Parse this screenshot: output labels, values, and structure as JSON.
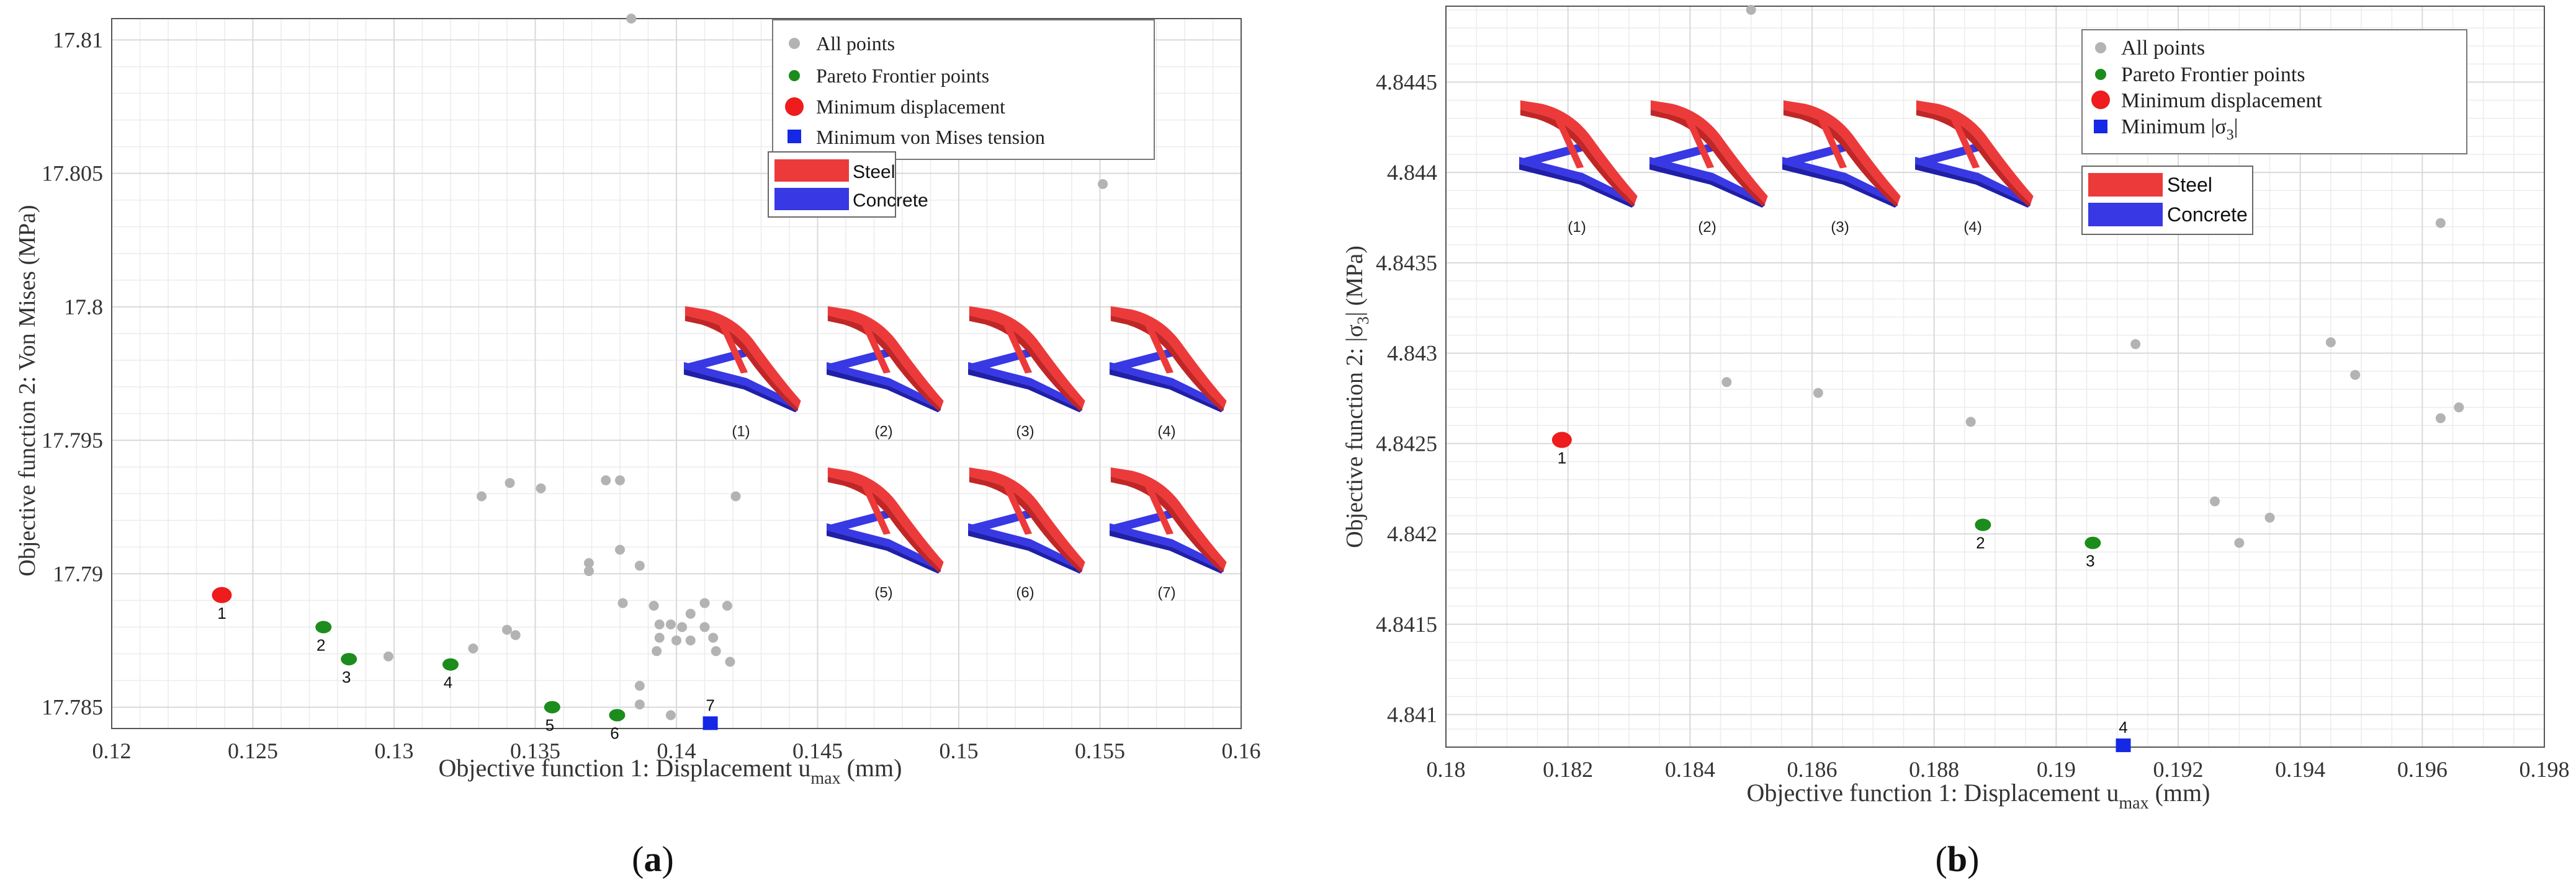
{
  "colors": {
    "all_points": "#b3b3b3",
    "pareto": "#1c8c1c",
    "min_displacement": "#ee1c1c",
    "min_stress": "#1428e6",
    "steel": "#ec3a3a",
    "concrete": "#3838e4",
    "grid": "#d9d9d9"
  },
  "material_legend": {
    "steel": "Steel",
    "concrete": "Concrete"
  },
  "chart_data": [
    {
      "type": "scatter",
      "panel_label": "a",
      "xlabel_prefix": "Objective function 1: Displacement u",
      "xlabel_sub": "max",
      "xlabel_suffix": " (mm)",
      "ylabel": "Objective function 2: Von Mises (MPa)",
      "xlim": [
        0.12,
        0.16
      ],
      "ylim": [
        17.7842,
        17.8108
      ],
      "xticks": [
        0.12,
        0.125,
        0.13,
        0.135,
        0.14,
        0.145,
        0.15,
        0.155,
        0.16
      ],
      "xtick_labels": [
        "0.12",
        "0.125",
        "0.13",
        "0.135",
        "0.14",
        "0.145",
        "0.15",
        "0.155",
        "0.16"
      ],
      "yticks": [
        17.785,
        17.79,
        17.795,
        17.8,
        17.805,
        17.81
      ],
      "ytick_labels": [
        "17.785",
        "17.79",
        "17.795",
        "17.8",
        "17.805",
        "17.81"
      ],
      "legend": {
        "all": "All points",
        "pareto": "Pareto Frontier points",
        "min_disp": "Minimum displacement",
        "min_stress": "Minimum von Mises tension"
      },
      "all_points": [
        [
          0.1384,
          17.8108
        ],
        [
          0.1551,
          17.8046
        ],
        [
          0.1331,
          17.7929
        ],
        [
          0.1341,
          17.7934
        ],
        [
          0.1352,
          17.7932
        ],
        [
          0.1375,
          17.7935
        ],
        [
          0.138,
          17.7935
        ],
        [
          0.1421,
          17.7929
        ],
        [
          0.1369,
          17.7904
        ],
        [
          0.1369,
          17.7901
        ],
        [
          0.138,
          17.7909
        ],
        [
          0.1387,
          17.7903
        ],
        [
          0.1381,
          17.7889
        ],
        [
          0.1392,
          17.7888
        ],
        [
          0.1405,
          17.7885
        ],
        [
          0.141,
          17.7889
        ],
        [
          0.1418,
          17.7888
        ],
        [
          0.134,
          17.7879
        ],
        [
          0.1343,
          17.7877
        ],
        [
          0.1394,
          17.7881
        ],
        [
          0.1398,
          17.7881
        ],
        [
          0.1402,
          17.788
        ],
        [
          0.141,
          17.788
        ],
        [
          0.1394,
          17.7876
        ],
        [
          0.14,
          17.7875
        ],
        [
          0.1405,
          17.7875
        ],
        [
          0.1413,
          17.7876
        ],
        [
          0.1298,
          17.7869
        ],
        [
          0.1328,
          17.7872
        ],
        [
          0.1393,
          17.7871
        ],
        [
          0.1414,
          17.7871
        ],
        [
          0.1419,
          17.7867
        ],
        [
          0.1387,
          17.7858
        ],
        [
          0.1387,
          17.7851
        ],
        [
          0.1398,
          17.7847
        ]
      ],
      "pareto_points": [
        {
          "x": 0.1275,
          "y": 17.788,
          "label": "2"
        },
        {
          "x": 0.1284,
          "y": 17.7868,
          "label": "3"
        },
        {
          "x": 0.132,
          "y": 17.7866,
          "label": "4"
        },
        {
          "x": 0.1356,
          "y": 17.785,
          "label": "5"
        },
        {
          "x": 0.1379,
          "y": 17.7847,
          "label": "6"
        }
      ],
      "min_displacement": {
        "x": 0.1239,
        "y": 17.7892,
        "label": "1"
      },
      "min_stress": {
        "x": 0.1412,
        "y": 17.7844,
        "label": "7"
      },
      "thumbnail_labels": [
        "(1)",
        "(2)",
        "(3)",
        "(4)",
        "(5)",
        "(6)",
        "(7)"
      ]
    },
    {
      "type": "scatter",
      "panel_label": "b",
      "xlabel_prefix": "Objective function 1: Displacement u",
      "xlabel_sub": "max",
      "xlabel_suffix": " (mm)",
      "ylabel_prefix": "Objective function 2: |σ",
      "ylabel_sub": "3",
      "ylabel_suffix": "| (MPa)",
      "xlim": [
        0.18,
        0.198
      ],
      "ylim": [
        4.84082,
        4.84492
      ],
      "xticks": [
        0.18,
        0.182,
        0.184,
        0.186,
        0.188,
        0.19,
        0.192,
        0.194,
        0.196,
        0.198
      ],
      "xtick_labels": [
        "0.18",
        "0.182",
        "0.184",
        "0.186",
        "0.188",
        "0.19",
        "0.192",
        "0.194",
        "0.196",
        "0.198"
      ],
      "yticks": [
        4.841,
        4.8415,
        4.842,
        4.8425,
        4.843,
        4.8435,
        4.844,
        4.8445
      ],
      "ytick_labels": [
        "4.841",
        "4.8415",
        "4.842",
        "4.8425",
        "4.843",
        "4.8435",
        "4.844",
        "4.8445"
      ],
      "legend": {
        "all": "All points",
        "pareto": "Pareto Frontier points",
        "min_disp": "Minimum displacement",
        "min_stress_prefix": "Minimum |σ",
        "min_stress_sub": "3",
        "min_stress_suffix": "|"
      },
      "all_points": [
        [
          0.185,
          4.8449
        ],
        [
          0.1963,
          4.84372
        ],
        [
          0.1846,
          4.84284
        ],
        [
          0.1861,
          4.84278
        ],
        [
          0.1886,
          4.84262
        ],
        [
          0.1913,
          4.84305
        ],
        [
          0.1945,
          4.84306
        ],
        [
          0.1949,
          4.84288
        ],
        [
          0.1963,
          4.84264
        ],
        [
          0.1966,
          4.8427
        ],
        [
          0.1926,
          4.84218
        ],
        [
          0.193,
          4.84195
        ],
        [
          0.1935,
          4.84209
        ]
      ],
      "pareto_points": [
        {
          "x": 0.1888,
          "y": 4.84205,
          "label": "2"
        },
        {
          "x": 0.1906,
          "y": 4.84195,
          "label": "3"
        }
      ],
      "min_displacement": {
        "x": 0.1819,
        "y": 4.84252,
        "label": "1"
      },
      "min_stress": {
        "x": 0.1911,
        "y": 4.84083,
        "label": "4"
      },
      "thumbnail_labels": [
        "(1)",
        "(2)",
        "(3)",
        "(4)"
      ]
    }
  ]
}
